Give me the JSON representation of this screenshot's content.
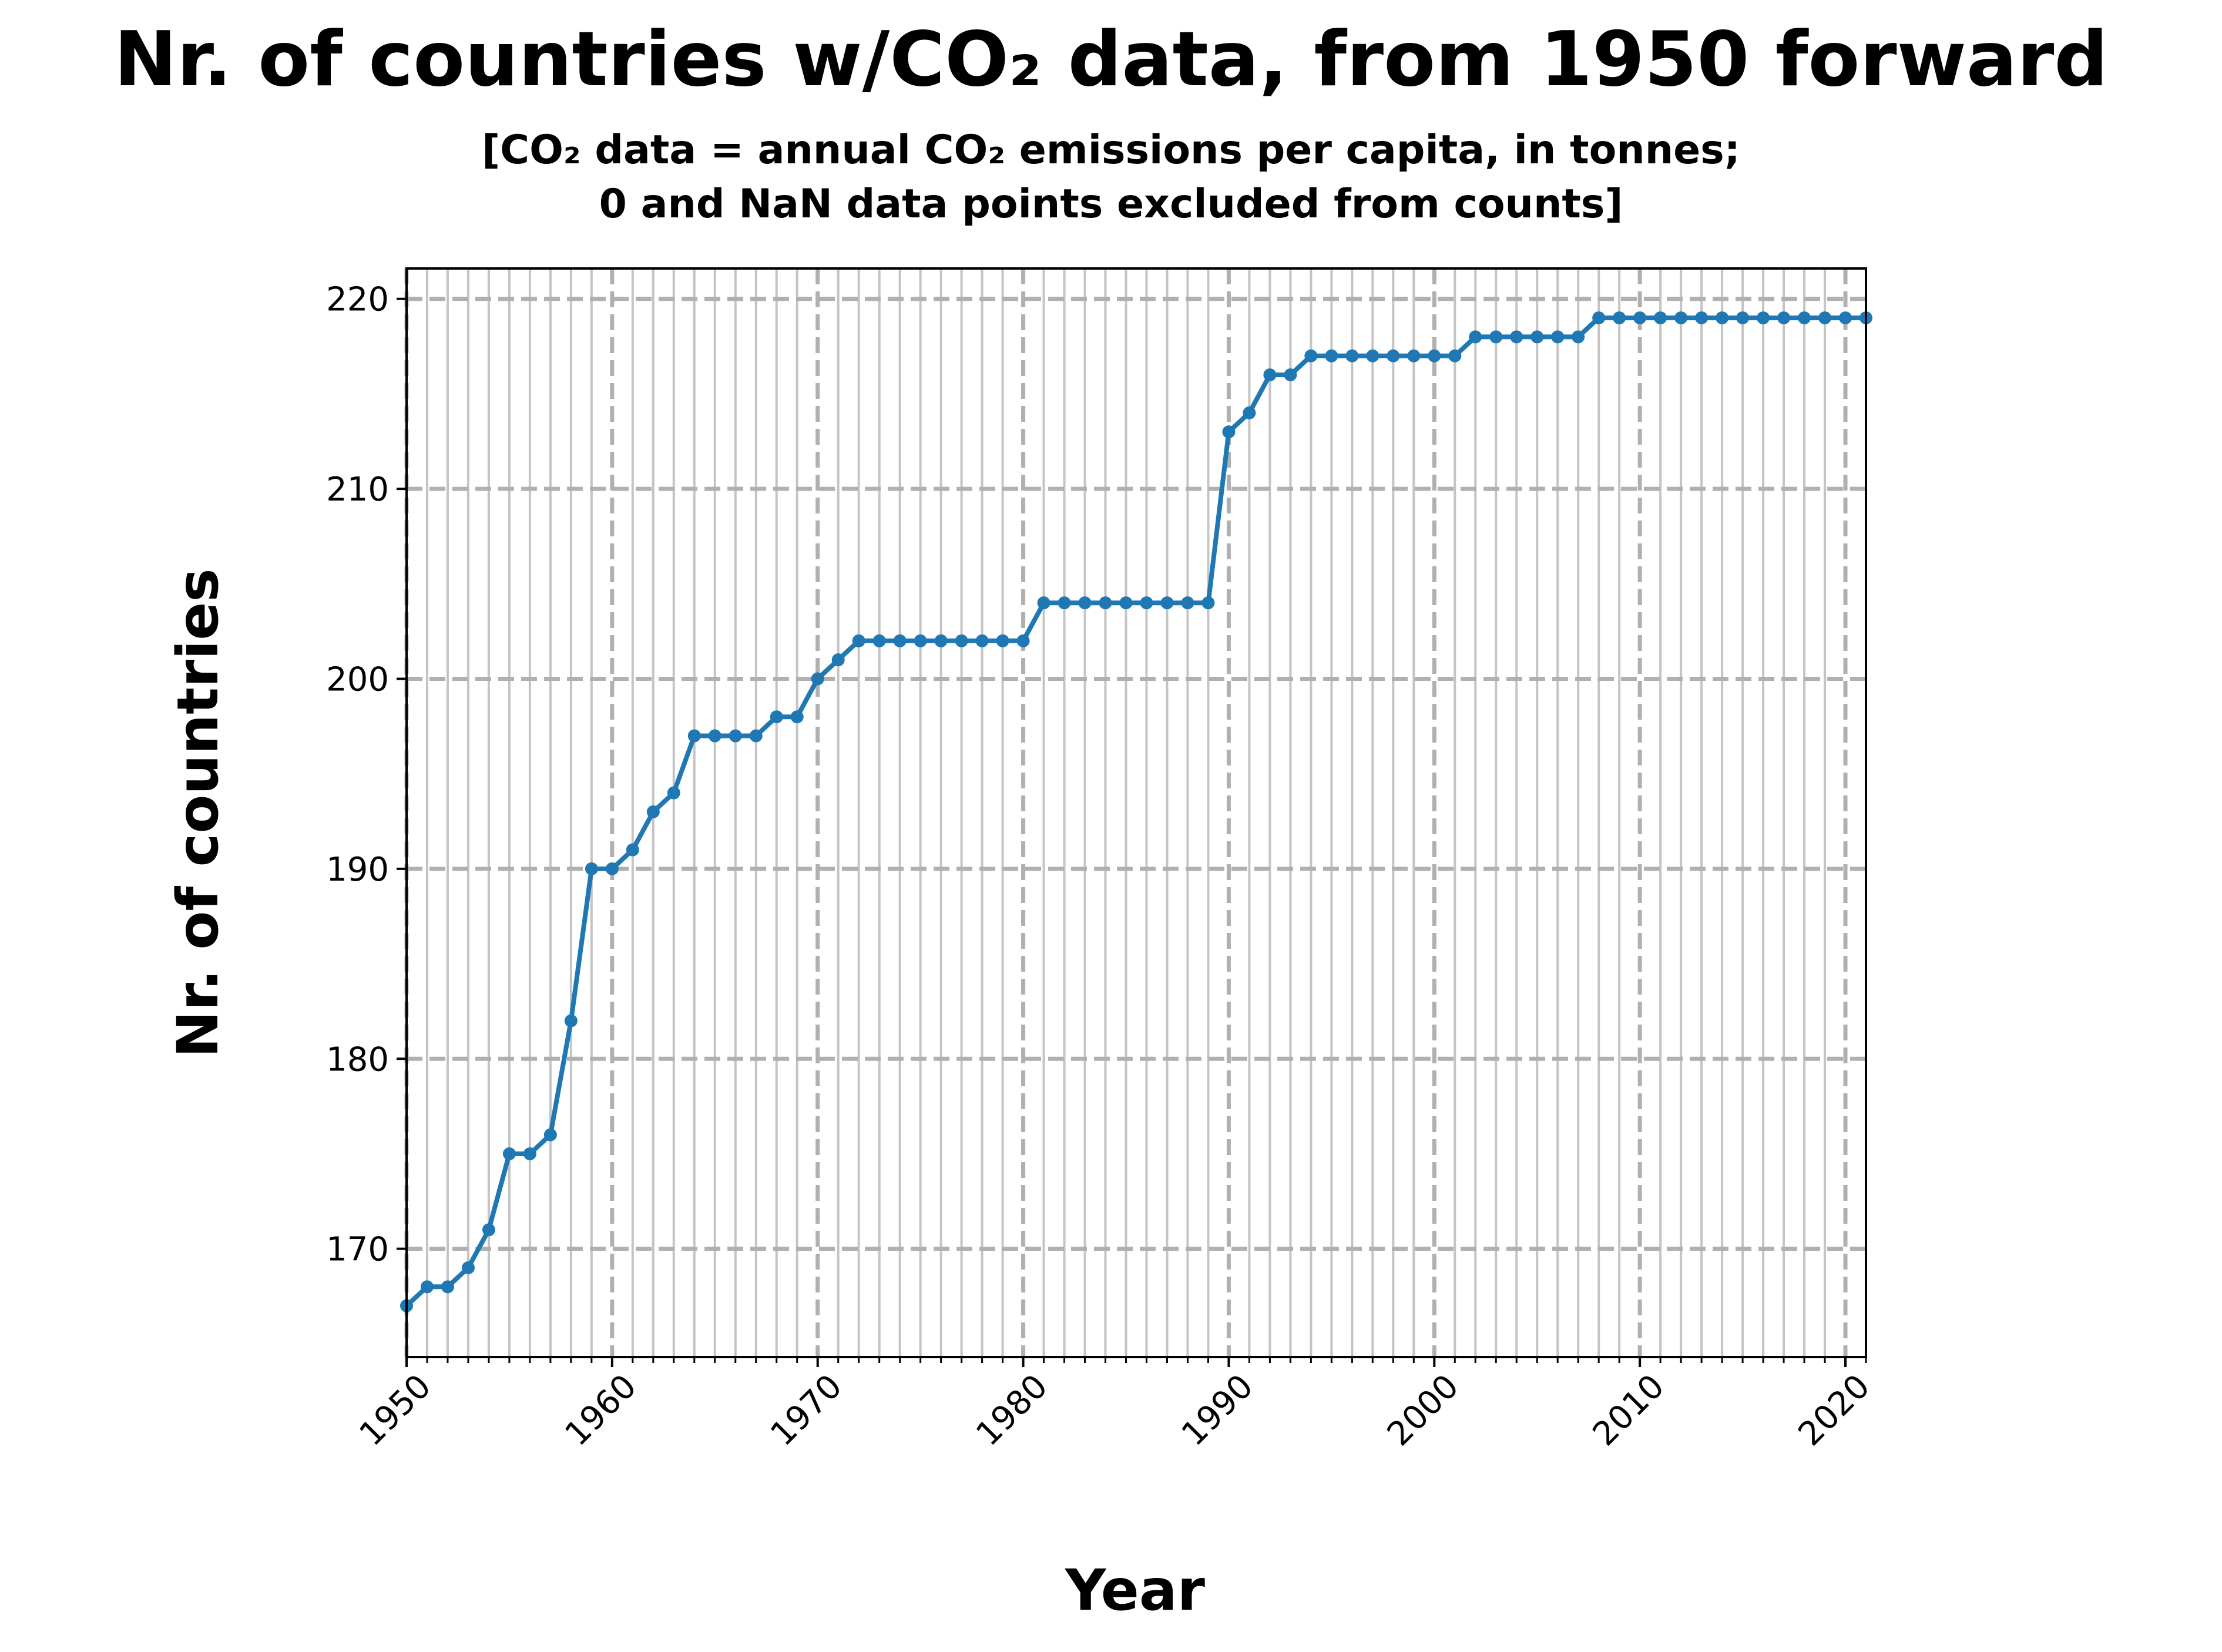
{
  "chart_data": {
    "type": "line",
    "title": "Nr. of countries w/CO₂ data, from 1950 forward",
    "subtitle_lines": [
      "[CO₂ data = annual CO₂ emissions per capita, in tonnes;",
      "0 and NaN data points excluded from counts]"
    ],
    "xlabel": "Year",
    "ylabel": "Nr. of countries",
    "xlim": [
      1950,
      2021
    ],
    "ylim": [
      164.3,
      221.6
    ],
    "x_ticks": [
      1950,
      1960,
      1970,
      1980,
      1990,
      2000,
      2010,
      2020
    ],
    "x_tick_labels": [
      "1950",
      "1960",
      "1970",
      "1980",
      "1990",
      "2000",
      "2010",
      "2020"
    ],
    "y_ticks": [
      170,
      180,
      190,
      200,
      210,
      220
    ],
    "y_tick_labels": [
      "170",
      "180",
      "190",
      "200",
      "210",
      "220"
    ],
    "grid": {
      "major": "dashed",
      "minor_x": "solid, every year"
    },
    "colors": {
      "line": "#1f77b4",
      "major_grid": "#b0b0b0",
      "minor_grid": "#c4c4c4"
    },
    "series": [
      {
        "x": [
          1950,
          1951,
          1952,
          1953,
          1954,
          1955,
          1956,
          1957,
          1958,
          1959,
          1960,
          1961,
          1962,
          1963,
          1964,
          1965,
          1966,
          1967,
          1968,
          1969,
          1970,
          1971,
          1972,
          1973,
          1974,
          1975,
          1976,
          1977,
          1978,
          1979,
          1980,
          1981,
          1982,
          1983,
          1984,
          1985,
          1986,
          1987,
          1988,
          1989,
          1990,
          1991,
          1992,
          1993,
          1994,
          1995,
          1996,
          1997,
          1998,
          1999,
          2000,
          2001,
          2002,
          2003,
          2004,
          2005,
          2006,
          2007,
          2008,
          2009,
          2010,
          2011,
          2012,
          2013,
          2014,
          2015,
          2016,
          2017,
          2018,
          2019,
          2020,
          2021
        ],
        "values": [
          167,
          168,
          168,
          169,
          171,
          175,
          175,
          176,
          182,
          190,
          190,
          191,
          193,
          194,
          197,
          197,
          197,
          197,
          198,
          198,
          200,
          201,
          202,
          202,
          202,
          202,
          202,
          202,
          202,
          202,
          202,
          204,
          204,
          204,
          204,
          204,
          204,
          204,
          204,
          204,
          213,
          214,
          216,
          216,
          217,
          217,
          217,
          217,
          217,
          217,
          217,
          217,
          218,
          218,
          218,
          218,
          218,
          218,
          219,
          219,
          219,
          219,
          219,
          219,
          219,
          219,
          219,
          219,
          219,
          219,
          219,
          219
        ]
      }
    ]
  }
}
